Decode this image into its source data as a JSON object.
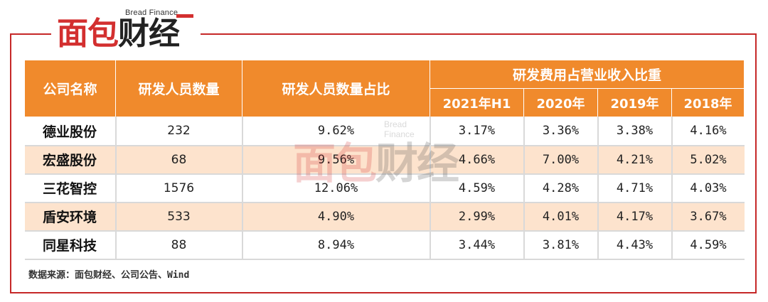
{
  "logo": {
    "en": "Bread Finance",
    "cn_red": "面包",
    "cn_dark": "财经"
  },
  "table": {
    "headers": {
      "company": "公司名称",
      "staff_count": "研发人员数量",
      "staff_ratio": "研发人员数量占比",
      "expense_group": "研发费用占营业收入比重",
      "years": [
        "2021年H1",
        "2020年",
        "2019年",
        "2018年"
      ]
    },
    "rows": [
      {
        "name": "德业股份",
        "count": "232",
        "ratio": "9.62%",
        "y2021h1": "3.17%",
        "y2020": "3.36%",
        "y2019": "3.38%",
        "y2018": "4.16%"
      },
      {
        "name": "宏盛股份",
        "count": "68",
        "ratio": "9.56%",
        "y2021h1": "4.66%",
        "y2020": "7.00%",
        "y2019": "4.21%",
        "y2018": "5.02%"
      },
      {
        "name": "三花智控",
        "count": "1576",
        "ratio": "12.06%",
        "y2021h1": "4.59%",
        "y2020": "4.28%",
        "y2019": "4.71%",
        "y2018": "4.03%"
      },
      {
        "name": "盾安环境",
        "count": "533",
        "ratio": "4.90%",
        "y2021h1": "2.99%",
        "y2020": "4.01%",
        "y2019": "4.17%",
        "y2018": "3.67%"
      },
      {
        "name": "同星科技",
        "count": "88",
        "ratio": "8.94%",
        "y2021h1": "3.44%",
        "y2020": "3.81%",
        "y2019": "4.43%",
        "y2018": "4.59%"
      }
    ]
  },
  "watermark": {
    "en": "Bread Finance",
    "cn_red": "面包",
    "cn_dark": "财经"
  },
  "source": "数据来源：面包财经、公司公告、Wind",
  "colors": {
    "header_orange": "#f08a2c",
    "row_peach": "#fde3cd",
    "brand_red": "#d32f2f"
  }
}
